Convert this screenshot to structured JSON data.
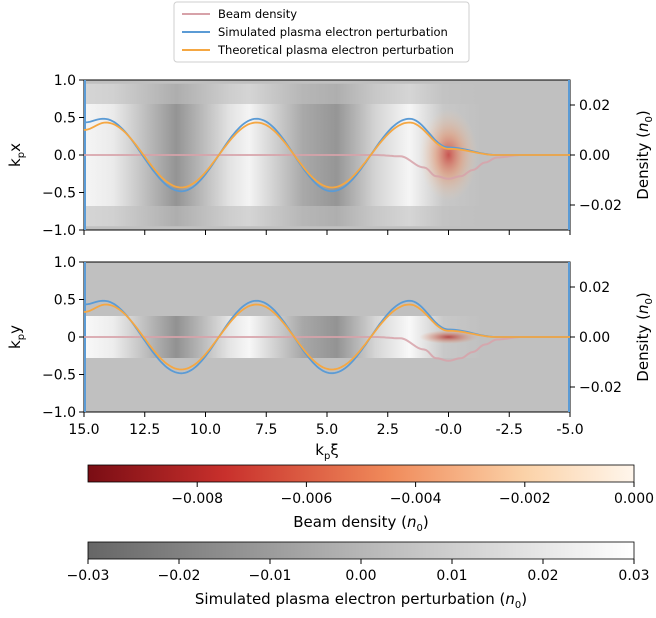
{
  "legend": {
    "entries": [
      {
        "label": "Beam density",
        "color": "#d7a2a9"
      },
      {
        "label": "Simulated plasma electron perturbation",
        "color": "#5b9bd5"
      },
      {
        "label": "Theoretical plasma electron perturbation",
        "color": "#f5a742"
      }
    ]
  },
  "chart_data": {
    "type": "line",
    "x_axis": {
      "label": "k_pξ",
      "range": [
        15.0,
        -5.0
      ],
      "tick_labels": [
        "15.0",
        "12.5",
        "10.0",
        "7.5",
        "5.0",
        "2.5",
        "-0.0",
        "-2.5",
        "-5.0"
      ]
    },
    "panels": [
      {
        "ylabel_left": "k_px",
        "ylim_left": [
          -1.0,
          1.0
        ],
        "left_tick_labels": [
          "1.0",
          "0.5",
          "0.0",
          "−0.5",
          "−1.0"
        ],
        "ylabel_right": "Density (n_0)",
        "ylim_right": [
          -0.03,
          0.03
        ],
        "right_tick_labels": [
          "0.02",
          "0.00",
          "−0.02"
        ],
        "beam_width": 0.22
      },
      {
        "ylabel_left": "k_py",
        "ylim_left": [
          -1.0,
          1.0
        ],
        "left_tick_labels": [
          "1.0",
          "0.5",
          "0",
          "−0.5",
          "−1.0"
        ],
        "ylabel_right": "Density (n_0)",
        "ylim_right": [
          -0.03,
          0.03
        ],
        "right_tick_labels": [
          "0.02",
          "0.00",
          "−0.02"
        ],
        "beam_width": 0.05
      }
    ],
    "series": [
      {
        "name": "Beam density",
        "color": "#d7a2a9",
        "description_units": "n0",
        "points": [
          [
            15,
            0
          ],
          [
            3,
            0
          ],
          [
            2,
            -0.0005
          ],
          [
            1,
            -0.005
          ],
          [
            0.5,
            -0.0085
          ],
          [
            0,
            -0.0095
          ],
          [
            -0.5,
            -0.0085
          ],
          [
            -1,
            -0.006
          ],
          [
            -1.5,
            -0.003
          ],
          [
            -2,
            -0.001
          ],
          [
            -3,
            0
          ],
          [
            -5,
            0
          ]
        ]
      },
      {
        "name": "Simulated plasma electron perturbation",
        "color": "#5b9bd5",
        "description_units": "n0",
        "points": [
          [
            15,
            0.013
          ],
          [
            14.2,
            0.0145
          ],
          [
            11,
            -0.0145
          ],
          [
            7.9,
            0.0145
          ],
          [
            4.8,
            -0.0145
          ],
          [
            1.6,
            0.0145
          ],
          [
            0,
            0.003
          ],
          [
            -2,
            0
          ],
          [
            -5,
            0
          ]
        ]
      },
      {
        "name": "Theoretical plasma electron perturbation",
        "color": "#f5a742",
        "description_units": "n0",
        "points": [
          [
            15,
            0.01
          ],
          [
            14.1,
            0.013
          ],
          [
            11,
            -0.013
          ],
          [
            7.9,
            0.013
          ],
          [
            4.8,
            -0.013
          ],
          [
            1.6,
            0.013
          ],
          [
            0,
            0.0025
          ],
          [
            -2,
            0
          ],
          [
            -5,
            0
          ]
        ]
      }
    ],
    "image_background": "plasma electron perturbation shown as grayscale rings, darker at k_pξ≈11 and 5, lighter near 14, 8, 2",
    "colorbars": [
      {
        "label": "Beam density (n_0)",
        "range": [
          -0.01,
          0.0
        ],
        "tick_labels": [
          "−0.008",
          "−0.006",
          "−0.004",
          "−0.002",
          "0.000"
        ],
        "colors": [
          "#7a0d14",
          "#c8302c",
          "#f08a5a",
          "#fbd2a8",
          "#fff6ec"
        ]
      },
      {
        "label": "Simulated plasma electron perturbation (n_0)",
        "range": [
          -0.03,
          0.03
        ],
        "tick_labels": [
          "−0.03",
          "−0.02",
          "−0.01",
          "0.00",
          "0.01",
          "0.02",
          "0.03"
        ],
        "colors": [
          "#666666",
          "#b6b6b6",
          "#ffffff"
        ]
      }
    ]
  }
}
